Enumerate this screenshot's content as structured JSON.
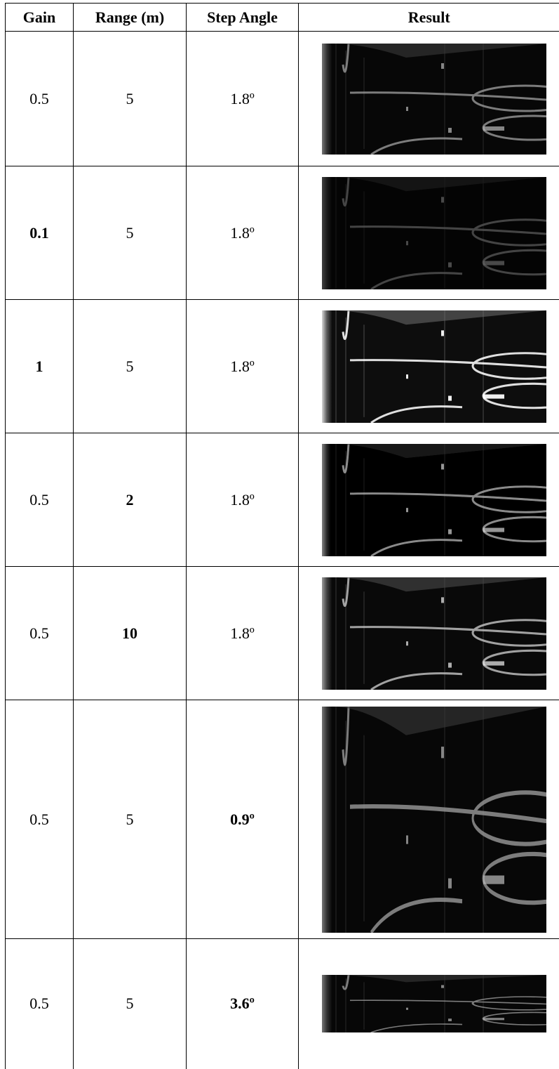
{
  "table": {
    "header": [
      "Gain",
      "Range (m)",
      "Step Angle",
      "Result"
    ],
    "rows": [
      [
        "0.5",
        "5",
        "1.8º"
      ],
      [
        "0.1",
        "5",
        "1.8º"
      ],
      [
        "1",
        "5",
        "1.8º"
      ],
      [
        "0.5",
        "2",
        "1.8º"
      ],
      [
        "0.5",
        "10",
        "1.8º"
      ],
      [
        "0.5",
        "5",
        "0.9º"
      ],
      [
        "0.5",
        "5",
        "3.6º"
      ]
    ]
  }
}
